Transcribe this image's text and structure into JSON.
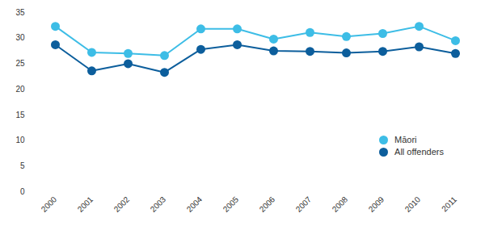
{
  "chart_data": {
    "type": "line",
    "categories": [
      "2000",
      "2001",
      "2002",
      "2003",
      "2004",
      "2005",
      "2006",
      "2007",
      "2008",
      "2009",
      "2010",
      "2011"
    ],
    "series": [
      {
        "name": "Māori",
        "color": "#3dbde6",
        "marker": "circle",
        "values": [
          32.3,
          27.2,
          27.0,
          26.6,
          31.8,
          31.8,
          29.8,
          31.1,
          30.3,
          30.9,
          32.3,
          29.5
        ]
      },
      {
        "name": "All offenders",
        "color": "#0c5e9c",
        "marker": "circle",
        "values": [
          28.7,
          23.6,
          25.0,
          23.3,
          27.8,
          28.7,
          27.5,
          27.4,
          27.1,
          27.4,
          28.3,
          27.0
        ]
      }
    ],
    "ylim": [
      0,
      35
    ],
    "yticks": [
      0,
      5,
      10,
      15,
      20,
      25,
      30,
      35
    ],
    "grid": false,
    "legend": "right"
  }
}
